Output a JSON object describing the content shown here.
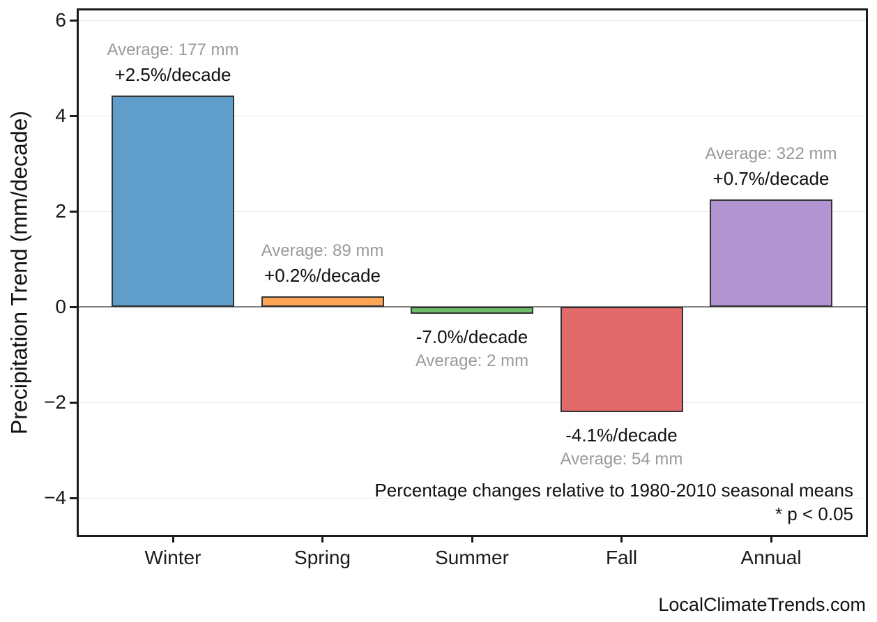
{
  "watermark": "LocalClimateTrends.com",
  "colors": {
    "background": "#ffffff",
    "frame": "#1c1c1c",
    "grid": "#e9e9e9",
    "zero_line": "#808080",
    "bar_edge": "#333333",
    "text_black": "#111111",
    "text_gray": "#999999",
    "bar_fills": [
      "#5F9DCB",
      "#FFA556",
      "#6BBC6B",
      "#E26A6A",
      "#B294D2"
    ]
  },
  "chart_data": {
    "type": "bar",
    "title": "",
    "xlabel": "",
    "ylabel": "Precipitation Trend (mm/decade)",
    "categories": [
      "Winter",
      "Spring",
      "Summer",
      "Fall",
      "Annual"
    ],
    "values": [
      4.43,
      0.22,
      -0.14,
      -2.21,
      2.25
    ],
    "annotations_pct": [
      "+2.5%/decade",
      "+0.2%/decade",
      "-7.0%/decade",
      "-4.1%/decade",
      "+0.7%/decade"
    ],
    "annotations_avg": [
      "Average: 177 mm",
      "Average: 89 mm",
      "Average: 2 mm",
      "Average: 54 mm",
      "Average: 322 mm"
    ],
    "yticks": [
      6,
      4,
      2,
      0,
      -2,
      -4
    ],
    "ytick_labels": [
      "6",
      "4",
      "2",
      "0",
      "−2",
      "−4"
    ],
    "ylim": [
      -4.8,
      6.2
    ],
    "grid": "horizontal",
    "legend": "none",
    "footnote_line1": "Percentage changes relative to 1980-2010 seasonal means",
    "footnote_line2": "* p < 0.05"
  }
}
